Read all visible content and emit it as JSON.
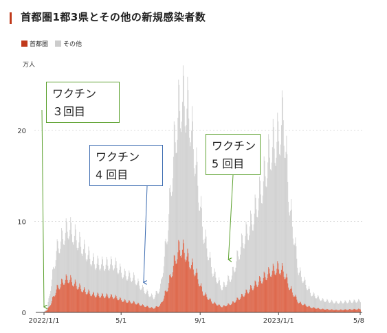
{
  "header": {
    "title": "首都圏1都3県とその他の新規感染者数"
  },
  "colors": {
    "accent": "#c0391b",
    "capital": "#e05a3a",
    "capital_dark": "#c0391b",
    "other": "#cccccc",
    "grid": "#dddddd",
    "green": "#5aa02c",
    "blue": "#3a6ab0"
  },
  "chart_data": {
    "type": "bar",
    "title": "首都圏1都3県とその他の新規感染者数",
    "unit_label": "万人",
    "ylim": [
      0,
      26
    ],
    "yticks": [
      0,
      10,
      20
    ],
    "x_range": [
      "2022-01-01",
      "2023-05-08"
    ],
    "xticks": [
      {
        "date": "2022-01-01",
        "label": "2022/1/1"
      },
      {
        "date": "2022-05-01",
        "label": "5/1"
      },
      {
        "date": "2022-09-01",
        "label": "9/1"
      },
      {
        "date": "2023-01-01",
        "label": "2023/1/1"
      },
      {
        "date": "2023-05-08",
        "label": "5/8"
      }
    ],
    "legend": [
      {
        "name": "首都圏",
        "color": "#c0391b"
      },
      {
        "name": "その他",
        "color": "#cccccc"
      }
    ],
    "series": [
      {
        "name": "首都圏",
        "stacked_total_keypoints": [
          [
            "2022-01-01",
            0.05
          ],
          [
            "2022-01-06",
            0.3
          ],
          [
            "2022-01-12",
            1.2
          ],
          [
            "2022-01-20",
            2.8
          ],
          [
            "2022-02-01",
            3.9
          ],
          [
            "2022-02-08",
            4.1
          ],
          [
            "2022-02-20",
            3.3
          ],
          [
            "2022-03-05",
            2.6
          ],
          [
            "2022-03-20",
            2.1
          ],
          [
            "2022-04-05",
            2.0
          ],
          [
            "2022-04-20",
            1.9
          ],
          [
            "2022-05-05",
            1.4
          ],
          [
            "2022-05-20",
            1.2
          ],
          [
            "2022-06-05",
            0.8
          ],
          [
            "2022-06-20",
            0.5
          ],
          [
            "2022-07-01",
            0.9
          ],
          [
            "2022-07-12",
            3.0
          ],
          [
            "2022-07-22",
            6.0
          ],
          [
            "2022-07-30",
            7.8
          ],
          [
            "2022-08-06",
            7.6
          ],
          [
            "2022-08-15",
            6.2
          ],
          [
            "2022-08-25",
            4.8
          ],
          [
            "2022-09-05",
            2.4
          ],
          [
            "2022-09-20",
            1.2
          ],
          [
            "2022-10-05",
            0.7
          ],
          [
            "2022-10-20",
            1.1
          ],
          [
            "2022-11-05",
            2.0
          ],
          [
            "2022-11-20",
            3.0
          ],
          [
            "2022-12-05",
            4.0
          ],
          [
            "2022-12-20",
            5.0
          ],
          [
            "2022-12-31",
            5.4
          ],
          [
            "2023-01-08",
            5.1
          ],
          [
            "2023-01-18",
            3.0
          ],
          [
            "2023-02-01",
            1.2
          ],
          [
            "2023-02-20",
            0.6
          ],
          [
            "2023-03-10",
            0.4
          ],
          [
            "2023-04-01",
            0.3
          ],
          [
            "2023-05-08",
            0.4
          ]
        ]
      },
      {
        "name": "その他",
        "stacked_total_keypoints": [
          [
            "2022-01-01",
            0.1
          ],
          [
            "2022-01-06",
            0.6
          ],
          [
            "2022-01-12",
            3.5
          ],
          [
            "2022-01-20",
            7.5
          ],
          [
            "2022-02-01",
            9.5
          ],
          [
            "2022-02-08",
            10.3
          ],
          [
            "2022-02-20",
            9.0
          ],
          [
            "2022-03-05",
            7.5
          ],
          [
            "2022-03-20",
            6.0
          ],
          [
            "2022-04-05",
            5.8
          ],
          [
            "2022-04-20",
            5.9
          ],
          [
            "2022-05-05",
            4.6
          ],
          [
            "2022-05-20",
            4.2
          ],
          [
            "2022-06-05",
            2.7
          ],
          [
            "2022-06-20",
            1.8
          ],
          [
            "2022-07-01",
            3.0
          ],
          [
            "2022-07-12",
            10.0
          ],
          [
            "2022-07-22",
            20.0
          ],
          [
            "2022-07-30",
            25.0
          ],
          [
            "2022-08-06",
            26.0
          ],
          [
            "2022-08-15",
            24.0
          ],
          [
            "2022-08-25",
            18.0
          ],
          [
            "2022-09-05",
            10.0
          ],
          [
            "2022-09-20",
            5.0
          ],
          [
            "2022-10-05",
            3.0
          ],
          [
            "2022-10-20",
            4.5
          ],
          [
            "2022-11-05",
            8.5
          ],
          [
            "2022-11-20",
            11.0
          ],
          [
            "2022-12-05",
            15.0
          ],
          [
            "2022-12-20",
            20.0
          ],
          [
            "2022-12-31",
            21.0
          ],
          [
            "2023-01-08",
            24.0
          ],
          [
            "2023-01-18",
            13.0
          ],
          [
            "2023-02-01",
            5.0
          ],
          [
            "2023-02-20",
            2.3
          ],
          [
            "2023-03-10",
            1.5
          ],
          [
            "2023-04-01",
            1.2
          ],
          [
            "2023-05-08",
            1.4
          ]
        ]
      }
    ],
    "annotations": [
      {
        "lines": [
          "ワクチン",
          "３回目"
        ],
        "color": "#5aa02c",
        "arrow_date": "2022-01-01",
        "arrow_value": 0
      },
      {
        "lines": [
          "ワクチン",
          "4 回目"
        ],
        "color": "#3a6ab0",
        "arrow_date": "2022-06-05",
        "arrow_value": 2.7
      },
      {
        "lines": [
          "ワクチン",
          "5 回目"
        ],
        "color": "#5aa02c",
        "arrow_date": "2022-10-15",
        "arrow_value": 5.2
      }
    ]
  }
}
